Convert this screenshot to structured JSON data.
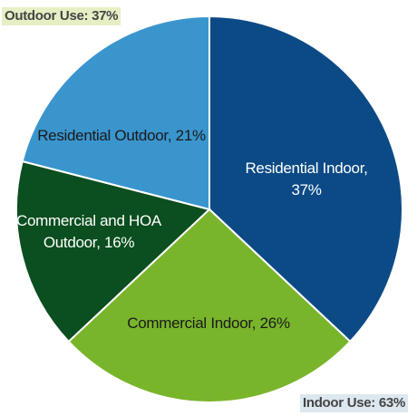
{
  "chart_data": {
    "type": "pie",
    "labels": [
      "Residential Indoor, 37%",
      "Commercial Indoor, 26%",
      "Commercial and HOA Outdoor, 16%",
      "Residential Outdoor, 21%"
    ],
    "values": [
      37,
      26,
      16,
      21
    ],
    "colors": [
      "#0c4a86",
      "#79b52b",
      "#0b4e1f",
      "#3a95cd"
    ],
    "annotations": [
      "Outdoor Use: 37%",
      "Indoor Use: 63%"
    ]
  }
}
